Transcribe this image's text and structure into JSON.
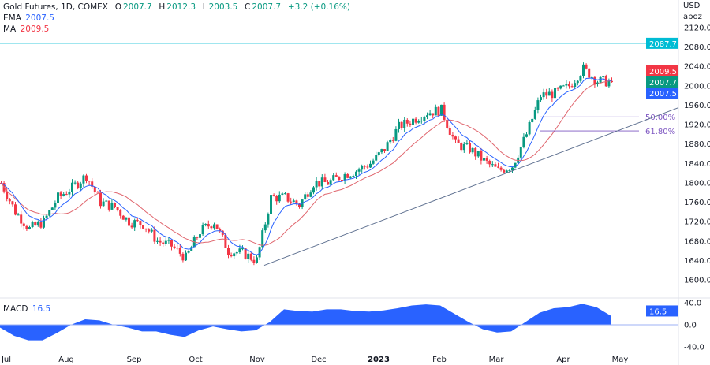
{
  "legend": {
    "symbol": "Gold Futures, 1D, COMEX",
    "o_label": "O",
    "o": "2007.7",
    "h_label": "H",
    "h": "2012.3",
    "l_label": "L",
    "l": "2003.5",
    "c_label": "C",
    "c": "2007.7",
    "change": "+3.2 (+0.16%)",
    "ema_label": "EMA",
    "ema": "2007.5",
    "ma_label": "MA",
    "ma": "2009.5",
    "macd_label": "MACD",
    "macd": "16.5"
  },
  "axis": {
    "currency": "USD",
    "unit": "apoz"
  },
  "badges": {
    "hline": "2087.7",
    "ma": "2009.5",
    "close": "2007.7",
    "ema": "2007.5",
    "macd": "16.5"
  },
  "fib": {
    "l50": "50.00%",
    "l618": "61.80%"
  },
  "colors": {
    "up": "#089981",
    "down": "#f23645",
    "ema": "#2962ff",
    "ma": "#e0666e",
    "hline": "#00bcd4",
    "macd": "#2962ff",
    "fib": "#7e57c2",
    "trend": "#5d6f8f"
  },
  "chart_data": {
    "type": "candlestick",
    "title": "Gold Futures, 1D, COMEX",
    "price_ticks": [
      "2120.0",
      "2080.0",
      "2040.0",
      "2000.0",
      "1960.0",
      "1920.0",
      "1880.0",
      "1840.0",
      "1800.0",
      "1760.0",
      "1720.0",
      "1680.0",
      "1640.0",
      "1600.0"
    ],
    "price_range": [
      1600,
      2120
    ],
    "macd_ticks": [
      "40.0",
      "0.0",
      "-40.0"
    ],
    "macd_range": [
      -40,
      40
    ],
    "x_labels": [
      "Jul",
      "Aug",
      "Sep",
      "Oct",
      "Nov",
      "Dec",
      "2023",
      "Feb",
      "Mar",
      "Apr",
      "May"
    ],
    "weekly_closes": [
      1800,
      1740,
      1705,
      1720,
      1770,
      1790,
      1815,
      1760,
      1750,
      1720,
      1715,
      1680,
      1670,
      1645,
      1700,
      1720,
      1660,
      1655,
      1640,
      1770,
      1770,
      1755,
      1800,
      1800,
      1815,
      1825,
      1840,
      1870,
      1915,
      1930,
      1945,
      1950,
      1880,
      1870,
      1845,
      1825,
      1835,
      1900,
      1980,
      1985,
      2000,
      2035,
      2010,
      2007.7
    ],
    "weekly_macd": [
      -5,
      -20,
      -28,
      -28,
      -15,
      0,
      10,
      8,
      0,
      -5,
      -12,
      -12,
      -18,
      -22,
      -10,
      -3,
      -8,
      -12,
      -10,
      5,
      28,
      25,
      24,
      28,
      28,
      25,
      24,
      26,
      30,
      35,
      37,
      35,
      20,
      5,
      -8,
      -14,
      -12,
      5,
      22,
      30,
      32,
      38,
      32,
      16.5
    ],
    "horizontal_line": 2087.7,
    "fib_levels": [
      {
        "label": "50.00%",
        "price": 1936
      },
      {
        "label": "61.80%",
        "price": 1907
      }
    ],
    "trendline": [
      {
        "date": "Nov 3",
        "price": 1630
      },
      {
        "date": "May",
        "price": 1955
      }
    ]
  }
}
